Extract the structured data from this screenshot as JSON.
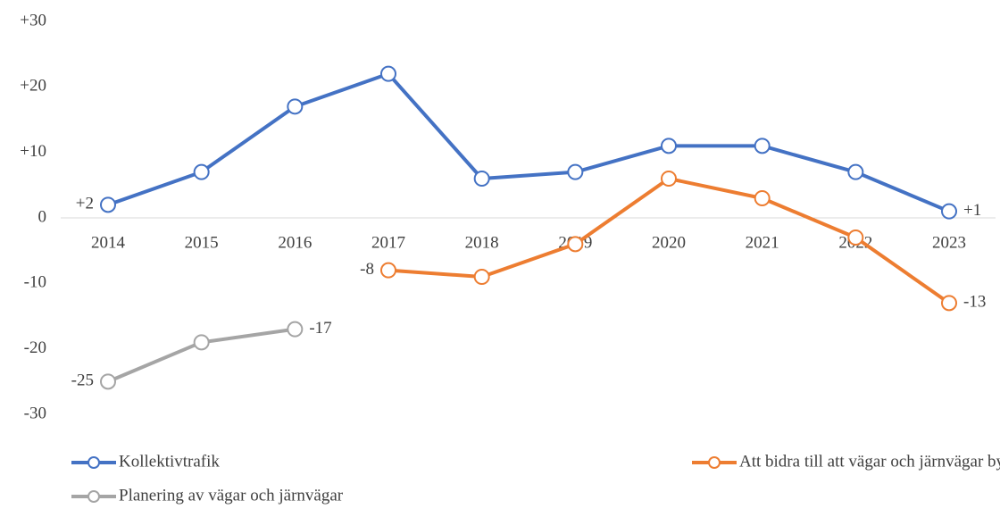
{
  "chart_data": {
    "type": "line",
    "categories": [
      "2014",
      "2015",
      "2016",
      "2017",
      "2018",
      "2019",
      "2020",
      "2021",
      "2022",
      "2023"
    ],
    "series": [
      {
        "name": "Kollektivtrafik",
        "color": "#4472c4",
        "values": [
          2,
          7,
          17,
          22,
          6,
          7,
          11,
          11,
          7,
          1
        ],
        "value_labels": [
          "+2",
          null,
          null,
          null,
          null,
          null,
          null,
          null,
          null,
          "+1"
        ]
      },
      {
        "name": "Att bidra till att vägar och järnvägar byggs ut",
        "color": "#ed7d31",
        "values": [
          null,
          null,
          null,
          -8,
          -9,
          -4,
          6,
          3,
          -3,
          -13
        ],
        "value_labels": [
          null,
          null,
          null,
          "-8",
          null,
          null,
          null,
          null,
          null,
          "-13"
        ]
      },
      {
        "name": "Planering av vägar och järnvägar",
        "color": "#a5a5a5",
        "values": [
          -25,
          -19,
          -17,
          null,
          null,
          null,
          null,
          null,
          null,
          null
        ],
        "value_labels": [
          "-25",
          null,
          "-17",
          null,
          null,
          null,
          null,
          null,
          null,
          null
        ]
      }
    ],
    "ylim": [
      -30,
      30
    ],
    "yticks": [
      {
        "value": 30,
        "label": "+30"
      },
      {
        "value": 20,
        "label": "+20"
      },
      {
        "value": 10,
        "label": "+10"
      },
      0,
      -10,
      -20,
      -30
    ],
    "grid": false,
    "legend": "bottom"
  }
}
